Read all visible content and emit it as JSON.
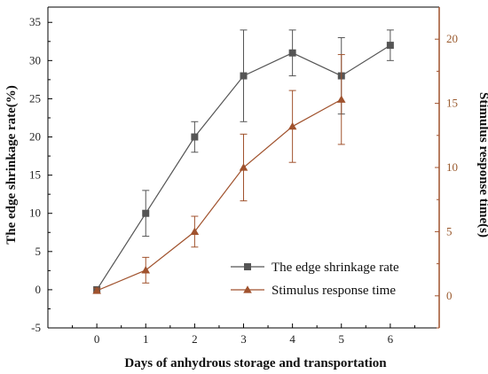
{
  "chart_data": {
    "type": "line",
    "x": [
      0,
      1,
      2,
      3,
      4,
      5,
      6
    ],
    "xlabel": "Days of anhydrous storage and transportation",
    "xlim": [
      -1,
      7
    ],
    "x_ticks": [
      "0",
      "1",
      "2",
      "3",
      "4",
      "5",
      "6"
    ],
    "ylabel_left": "The edge shrinkage rate(%)",
    "ylim_left": [
      -5,
      37
    ],
    "y_ticks_left": [
      "-5",
      "0",
      "5",
      "10",
      "15",
      "20",
      "25",
      "30",
      "35"
    ],
    "ylabel_right": "Stimulus response time(s)",
    "ylim_right": [
      -2.5,
      22.5
    ],
    "y_ticks_right": [
      "0",
      "5",
      "10",
      "15",
      "20"
    ],
    "grid": false,
    "legend_position": "bottom-right",
    "series": [
      {
        "name": "The edge shrinkage rate",
        "axis": "left",
        "marker": "square",
        "color": "#555555",
        "x": [
          0,
          1,
          2,
          3,
          4,
          5,
          6
        ],
        "y": [
          0,
          10,
          20,
          28,
          31,
          28,
          32
        ],
        "error": [
          0,
          3,
          2,
          6,
          3,
          5,
          2
        ]
      },
      {
        "name": "Stimulus response time",
        "axis": "right",
        "marker": "triangle",
        "color": "#a0522d",
        "x": [
          0,
          1,
          2,
          3,
          4,
          5
        ],
        "y": [
          0.4,
          2,
          5,
          10,
          13.2,
          15.3
        ],
        "error": [
          0.2,
          1,
          1.2,
          2.6,
          2.8,
          3.5
        ]
      }
    ]
  }
}
